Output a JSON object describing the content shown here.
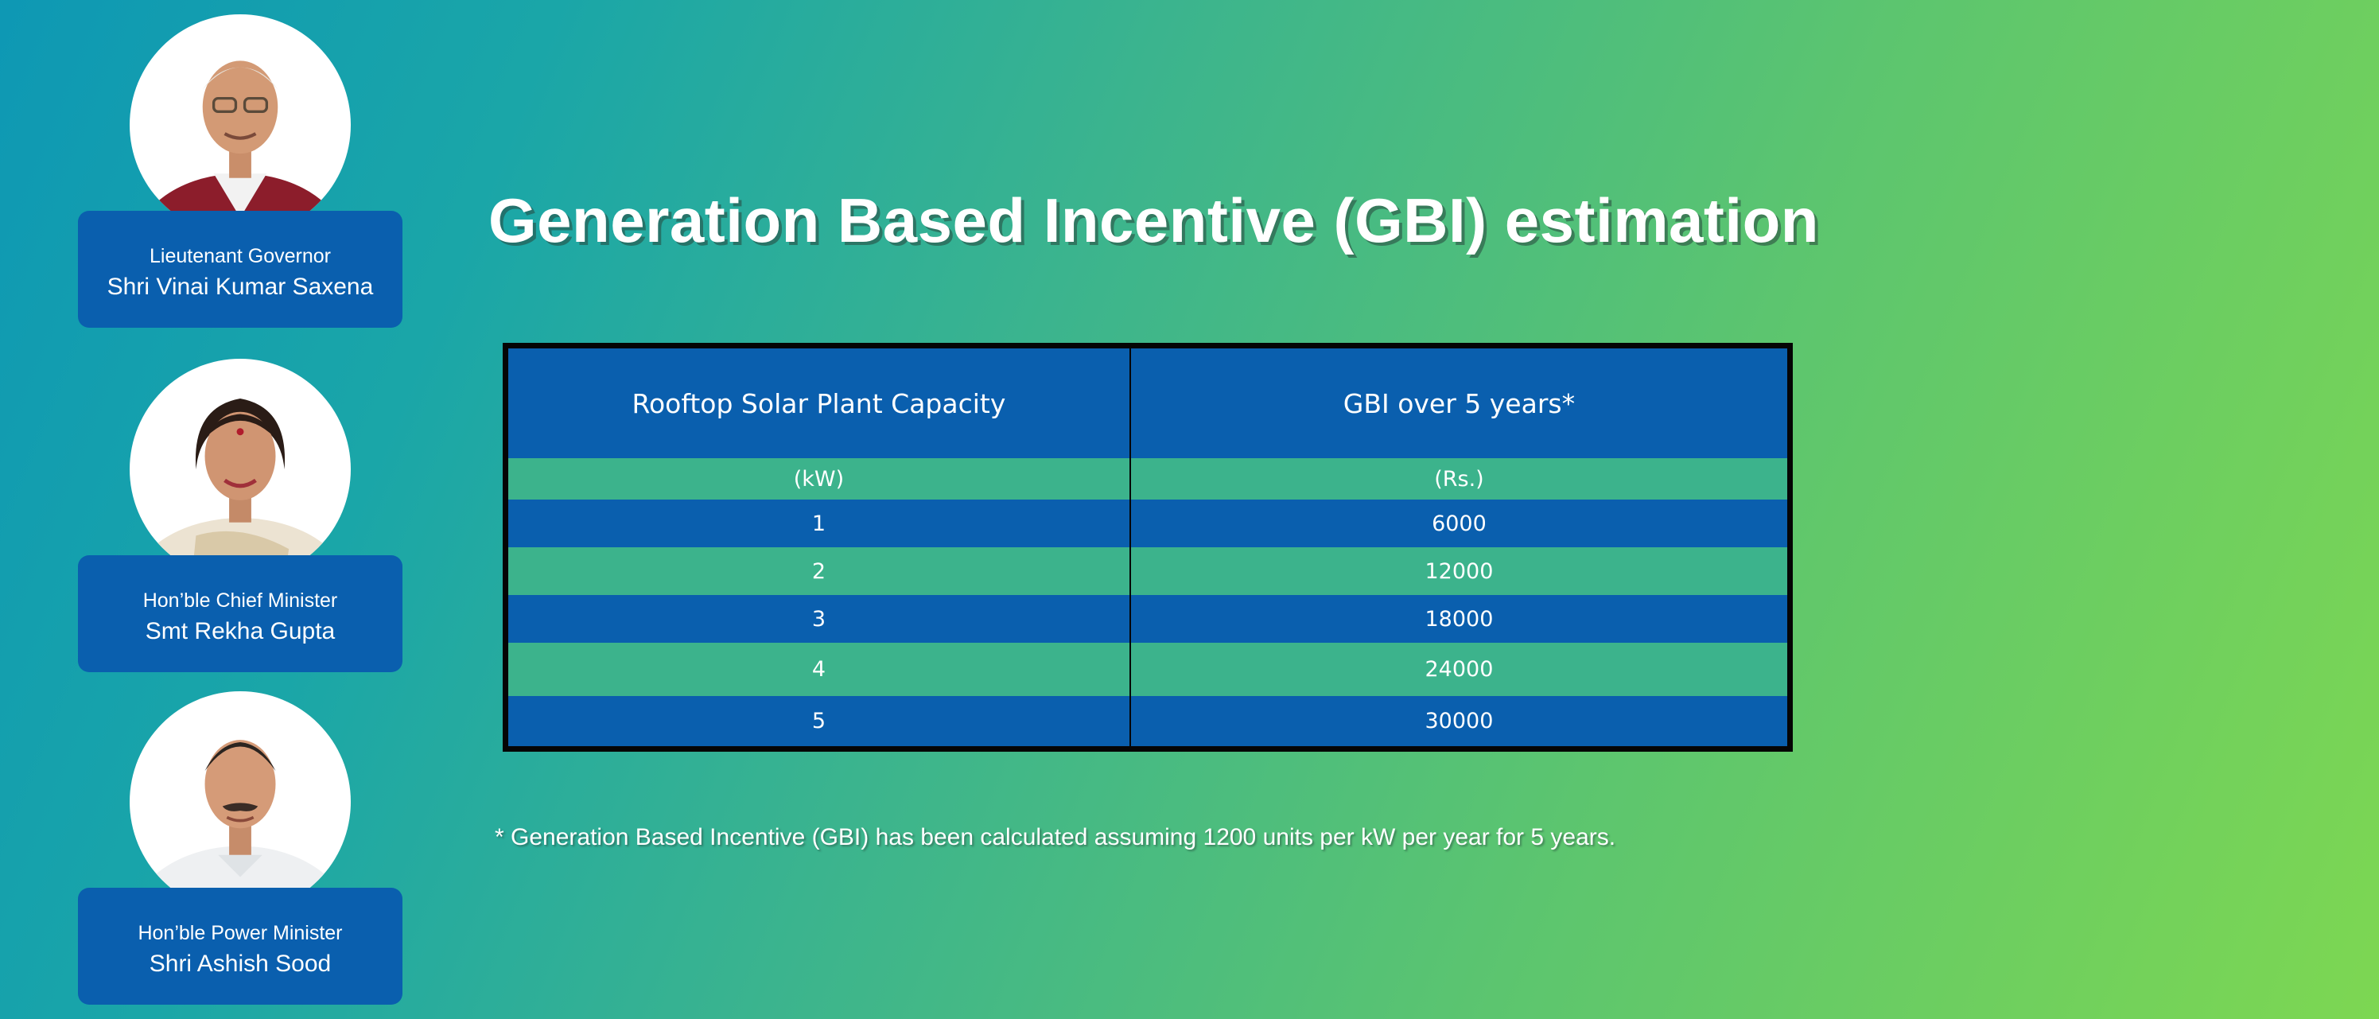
{
  "officials": [
    {
      "role": "Lieutenant Governor",
      "name": "Shri Vinai Kumar Saxena"
    },
    {
      "role": "Hon’ble Chief Minister",
      "name": "Smt Rekha Gupta"
    },
    {
      "role": "Hon’ble Power Minister",
      "name": "Shri Ashish Sood"
    }
  ],
  "title": "Generation Based Incentive (GBI) estimation",
  "table": {
    "headers": [
      "Rooftop Solar Plant Capacity",
      "GBI over 5 years*"
    ],
    "units": [
      "(kW)",
      "(Rs.)"
    ],
    "rows": [
      [
        "1",
        "6000"
      ],
      [
        "2",
        "12000"
      ],
      [
        "3",
        "18000"
      ],
      [
        "4",
        "24000"
      ],
      [
        "5",
        "30000"
      ]
    ]
  },
  "footnote": "* Generation Based Incentive (GBI) has been calculated assuming 1200 units per kW per year for 5 years.",
  "colors": {
    "table_blue": "#0a5fae",
    "table_green": "#3cb38c",
    "text": "#ffffff"
  }
}
